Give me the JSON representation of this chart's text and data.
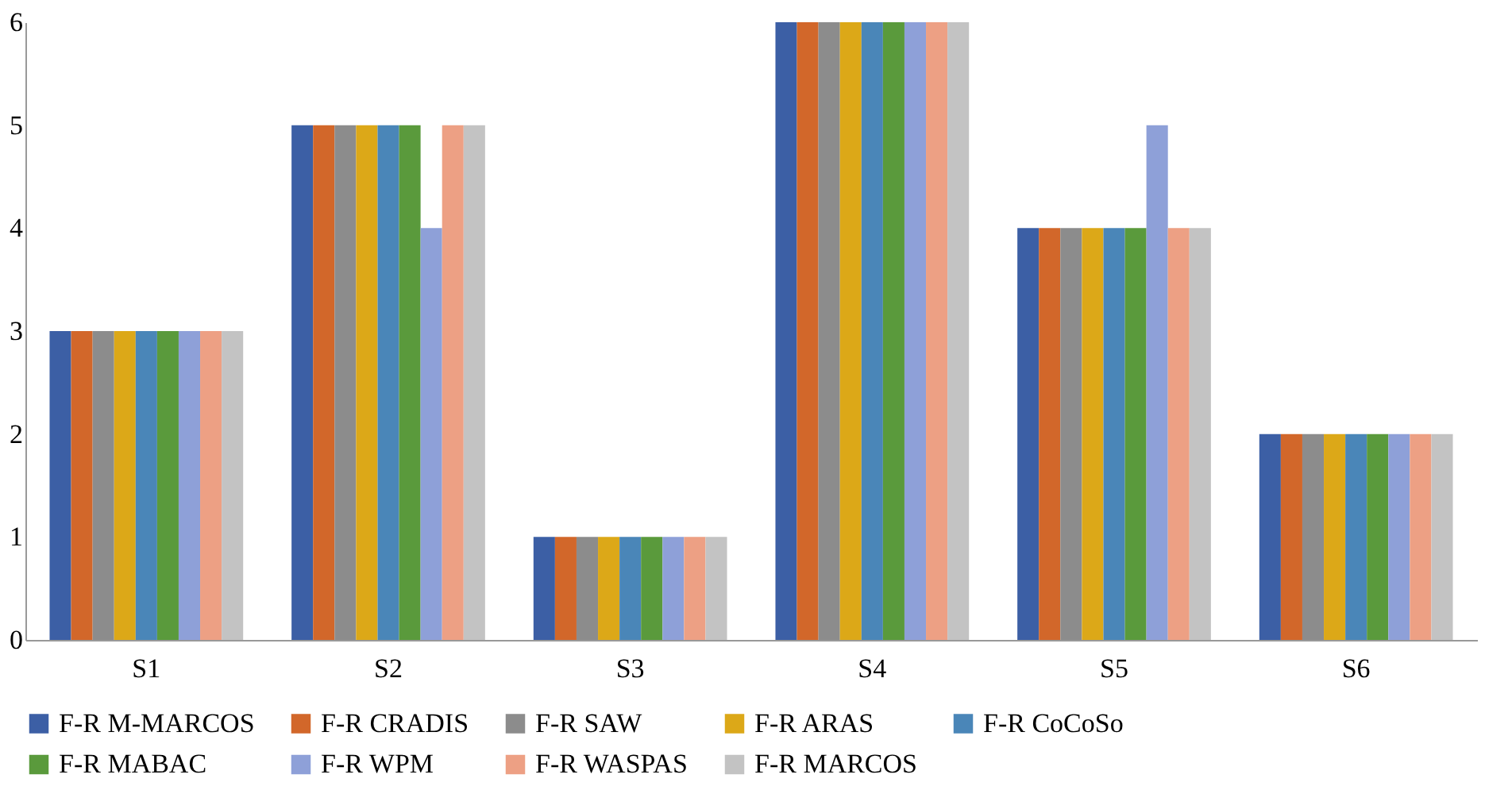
{
  "chart_data": {
    "type": "bar",
    "categories": [
      "S1",
      "S2",
      "S3",
      "S4",
      "S5",
      "S6"
    ],
    "series": [
      {
        "name": "F-R M-MARCOS",
        "color": "#3c5fa5",
        "values": [
          3,
          5,
          1,
          6,
          4,
          2
        ]
      },
      {
        "name": "F-R CRADIS",
        "color": "#d2672a",
        "values": [
          3,
          5,
          1,
          6,
          4,
          2
        ]
      },
      {
        "name": "F-R SAW",
        "color": "#8c8c8c",
        "values": [
          3,
          5,
          1,
          6,
          4,
          2
        ]
      },
      {
        "name": "F-R ARAS",
        "color": "#dca818",
        "values": [
          3,
          5,
          1,
          6,
          4,
          2
        ]
      },
      {
        "name": "F-R CoCoSo",
        "color": "#4a86b8",
        "values": [
          3,
          5,
          1,
          6,
          4,
          2
        ]
      },
      {
        "name": "F-R MABAC",
        "color": "#5a9a3c",
        "values": [
          3,
          5,
          1,
          6,
          4,
          2
        ]
      },
      {
        "name": "F-R WPM",
        "color": "#8ea0d8",
        "values": [
          3,
          4,
          1,
          6,
          5,
          2
        ]
      },
      {
        "name": "F-R WASPAS",
        "color": "#eda084",
        "values": [
          3,
          5,
          1,
          6,
          4,
          2
        ]
      },
      {
        "name": "F-R MARCOS",
        "color": "#c3c3c3",
        "values": [
          3,
          5,
          1,
          6,
          4,
          2
        ]
      }
    ],
    "ylim": [
      0,
      6
    ],
    "yticks": [
      0,
      1,
      2,
      3,
      4,
      5,
      6
    ],
    "grid": false,
    "legend": "bottom"
  }
}
